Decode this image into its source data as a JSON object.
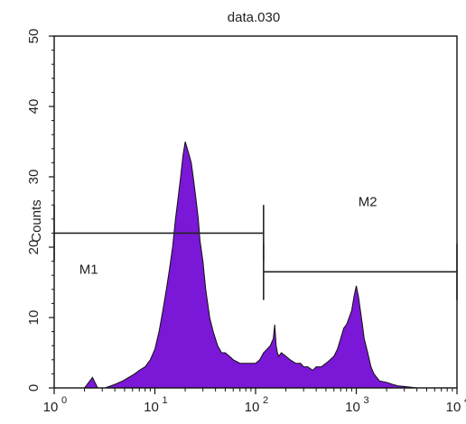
{
  "chart_data": {
    "type": "area",
    "title": "data.030",
    "xlabel": "",
    "ylabel": "Counts",
    "x_scale": "log",
    "xlim": [
      1,
      10000
    ],
    "ylim": [
      0,
      50
    ],
    "grid": false,
    "x_ticks": [
      {
        "value": 1,
        "base": "10",
        "exp": "0"
      },
      {
        "value": 10,
        "base": "10",
        "exp": "1"
      },
      {
        "value": 100,
        "base": "10",
        "exp": "2"
      },
      {
        "value": 1000,
        "base": "10",
        "exp": "3"
      },
      {
        "value": 10000,
        "base": "10",
        "exp": "4"
      }
    ],
    "y_ticks": [
      "0",
      "10",
      "20",
      "30",
      "40",
      "50"
    ],
    "fill_color": "#7b17d6",
    "outline_color": "#111111",
    "series": [
      {
        "x": [
          1,
          2,
          2.4,
          2.7,
          3.2,
          4,
          4.8,
          5.5,
          6.3,
          7,
          8,
          9,
          10,
          11,
          12,
          13,
          14,
          15,
          16,
          17,
          18,
          19,
          20,
          21,
          22,
          23,
          24,
          25,
          26,
          27,
          28,
          30,
          32,
          35,
          38,
          42,
          46,
          50,
          55,
          60,
          70,
          80,
          90,
          100,
          110,
          120,
          130,
          140,
          150,
          155,
          160,
          165,
          170,
          180,
          200,
          220,
          250,
          280,
          300,
          330,
          370,
          400,
          450,
          500,
          550,
          600,
          650,
          700,
          750,
          800,
          850,
          900,
          950,
          1000,
          1050,
          1100,
          1150,
          1200,
          1300,
          1400,
          1500,
          1700,
          2000,
          2300,
          2600,
          3000,
          3500,
          4000,
          5000,
          10000
        ],
        "y": [
          0,
          0,
          1.5,
          0,
          0,
          0.5,
          1,
          1.5,
          2,
          2.5,
          3,
          4,
          5.5,
          8,
          11,
          14,
          17,
          20,
          24,
          27,
          30,
          33,
          35,
          34,
          33,
          32,
          30,
          28,
          26,
          24,
          21,
          18,
          14,
          10,
          8,
          6,
          5,
          5,
          4.5,
          4,
          3.5,
          3.5,
          3.5,
          3.5,
          4,
          5,
          5.5,
          6,
          7,
          9,
          6,
          5,
          4.5,
          5,
          4.5,
          4,
          3.5,
          3.5,
          3,
          3,
          2.5,
          3,
          3,
          3.5,
          4,
          4.5,
          5.5,
          7,
          8.5,
          9,
          10,
          11,
          13,
          14.5,
          13,
          11,
          9,
          7,
          5,
          3,
          2,
          1,
          0.8,
          0.5,
          0.3,
          0.2,
          0.1,
          0,
          0,
          0
        ]
      }
    ],
    "markers": [
      {
        "label": "M1",
        "x_start": 1,
        "x_end": 120,
        "y": 22
      },
      {
        "label": "M2",
        "x_start": 120,
        "x_end": 10000,
        "y": 16.5
      }
    ]
  }
}
